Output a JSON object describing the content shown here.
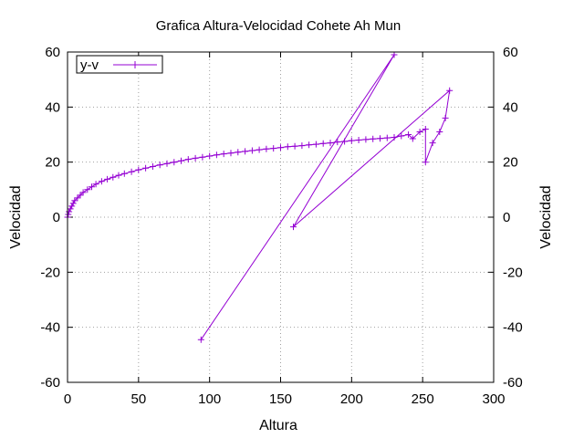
{
  "chart_data": {
    "type": "line",
    "title": "Grafica Altura-Velocidad Cohete Ah Mun",
    "xlabel": "Altura",
    "ylabel": "Velocidad",
    "y2label": "Velocidad",
    "xlim": [
      0,
      300
    ],
    "ylim": [
      -60,
      60
    ],
    "xticks": [
      "0",
      "50",
      "100",
      "150",
      "200",
      "250",
      "300"
    ],
    "yticks": [
      "-60",
      "-40",
      "-20",
      "0",
      "20",
      "40",
      "60"
    ],
    "grid": true,
    "legend_position": "top-left",
    "series": [
      {
        "name": "y-v",
        "color": "#9400d3",
        "x": [
          0,
          0.5,
          1,
          2,
          3,
          4,
          5,
          7,
          9,
          11,
          14,
          17,
          20,
          24,
          28,
          32,
          36,
          40,
          45,
          50,
          55,
          60,
          65,
          70,
          75,
          80,
          85,
          90,
          95,
          100,
          105,
          110,
          115,
          120,
          125,
          130,
          135,
          140,
          145,
          150,
          155,
          160,
          165,
          170,
          175,
          180,
          185,
          190,
          195,
          200,
          205,
          210,
          215,
          220,
          225,
          230,
          235,
          240,
          243,
          248,
          252,
          252,
          257,
          262,
          266,
          269,
          159,
          230,
          94
        ],
        "y": [
          0,
          1,
          2,
          3,
          4,
          5,
          6,
          7,
          8,
          9,
          10,
          11,
          12,
          13,
          13.8,
          14.5,
          15.2,
          15.8,
          16.5,
          17.2,
          17.8,
          18.4,
          19,
          19.5,
          20,
          20.5,
          21,
          21.4,
          21.8,
          22.2,
          22.6,
          23,
          23.3,
          23.6,
          23.9,
          24.2,
          24.5,
          24.8,
          25,
          25.3,
          25.6,
          25.8,
          26,
          26.3,
          26.5,
          26.8,
          27,
          27.3,
          27.5,
          27.8,
          28,
          28.2,
          28.4,
          28.6,
          28.8,
          29,
          29.5,
          30,
          28.5,
          31,
          32,
          20,
          27,
          31,
          36,
          46,
          -3.5,
          59,
          -44.5
        ]
      }
    ]
  }
}
